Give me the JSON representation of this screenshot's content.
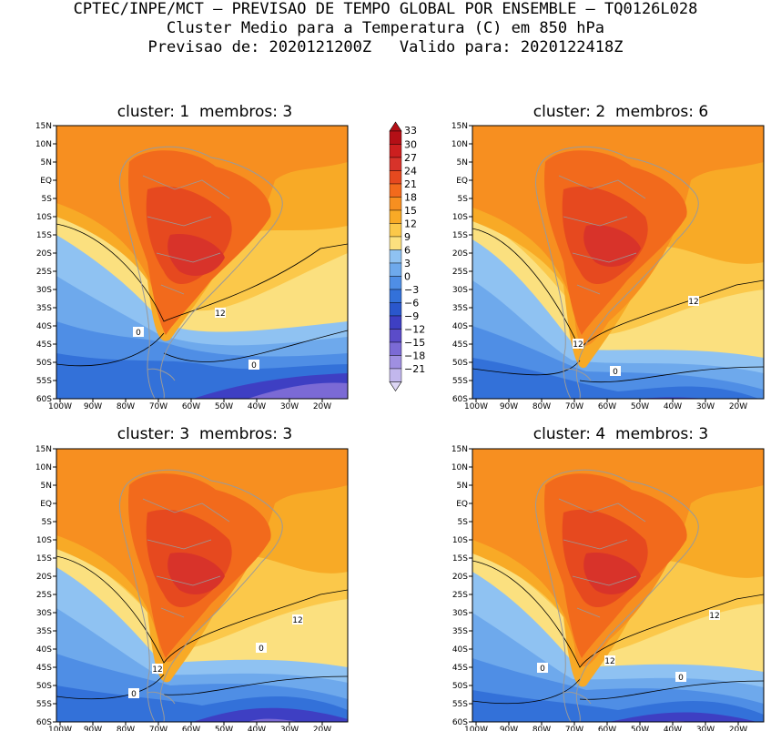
{
  "header": {
    "line1": "CPTEC/INPE/MCT — PREVISAO DE TEMPO GLOBAL POR ENSEMBLE — TQ0126L028",
    "line2": "Cluster Medio para a Temperatura (C) em 850 hPa",
    "line3": "Previsao de: 2020121200Z   Valido para: 2020122418Z"
  },
  "panels": [
    {
      "title": "cluster: 1  membros: 3",
      "contour_labels": [
        "12",
        "0",
        "0"
      ]
    },
    {
      "title": "cluster: 2  membros: 6",
      "contour_labels": [
        "12",
        "12",
        "0"
      ]
    },
    {
      "title": "cluster: 3  membros: 3",
      "contour_labels": [
        "12",
        "12",
        "0",
        "0"
      ]
    },
    {
      "title": "cluster: 4  membros: 3",
      "contour_labels": [
        "12",
        "12",
        "0",
        "0"
      ]
    }
  ],
  "lat_labels": [
    "15N",
    "10N",
    "5N",
    "EQ",
    "5S",
    "10S",
    "15S",
    "20S",
    "25S",
    "30S",
    "35S",
    "40S",
    "45S",
    "50S",
    "55S",
    "60S"
  ],
  "lon_labels": [
    "100W",
    "90W",
    "80W",
    "70W",
    "60W",
    "50W",
    "40W",
    "30W",
    "20W"
  ],
  "colorbar": {
    "labels": [
      "33",
      "30",
      "27",
      "24",
      "21",
      "18",
      "15",
      "12",
      "9",
      "6",
      "3",
      "0",
      "−3",
      "−6",
      "−9",
      "−12",
      "−15",
      "−18",
      "−21"
    ],
    "colors": [
      "#b40f16",
      "#cc1f1f",
      "#d8332a",
      "#e6491f",
      "#f26a1c",
      "#f78f20",
      "#f8aa26",
      "#fbc84a",
      "#fbe07f",
      "#8fc2f2",
      "#6ea9ec",
      "#4f8ee5",
      "#3371d9",
      "#2a57cc",
      "#3e3fc3",
      "#5b4cc9",
      "#7b6ad5",
      "#9f8fe1",
      "#c2b7ed",
      "#ddd6f5"
    ]
  }
}
